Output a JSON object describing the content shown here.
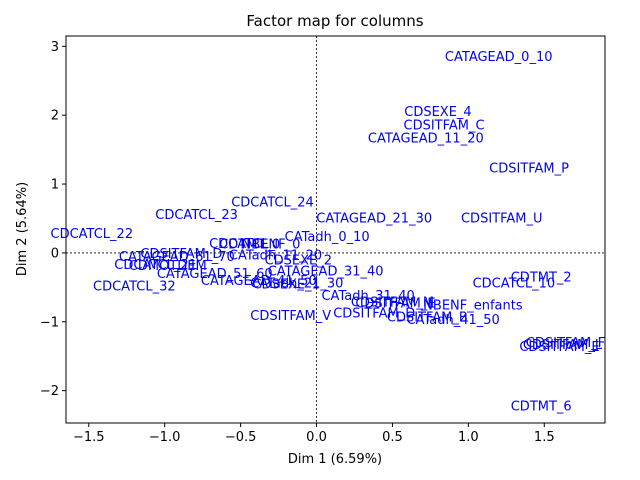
{
  "chart_data": {
    "type": "scatter",
    "title": "Factor map for columns",
    "xlabel": "Dim 1 (6.59%)",
    "ylabel": "Dim 2 (5.64%)",
    "xlim": [
      -1.65,
      1.9
    ],
    "ylim": [
      -2.47,
      3.15
    ],
    "x_ticks": [
      -1.5,
      -1.0,
      -0.5,
      0.0,
      0.5,
      1.0,
      1.5
    ],
    "x_tick_labels": [
      "−1.5",
      "−1.0",
      "−0.5",
      "0.0",
      "0.5",
      "1.0",
      "1.5"
    ],
    "y_ticks": [
      -2,
      -1,
      0,
      1,
      2,
      3
    ],
    "y_tick_labels": [
      "−2",
      "−1",
      "0",
      "1",
      "2",
      "3"
    ],
    "grid": false,
    "reference_lines": {
      "x": 0,
      "y": 0,
      "style": "dotted"
    },
    "label_color": "#0000ff",
    "points": [
      {
        "label": "CATAGEAD_0_10",
        "x": 1.2,
        "y": 2.85
      },
      {
        "label": "CDSEXE_4",
        "x": 0.8,
        "y": 2.05
      },
      {
        "label": "CDSITFAM_C",
        "x": 0.84,
        "y": 1.86
      },
      {
        "label": "CATAGEAD_11_20",
        "x": 0.72,
        "y": 1.67
      },
      {
        "label": "CDSITFAM_P",
        "x": 1.4,
        "y": 1.23
      },
      {
        "label": "CDCATCL_24",
        "x": -0.29,
        "y": 0.74
      },
      {
        "label": "CDCATCL_23",
        "x": -0.79,
        "y": 0.56
      },
      {
        "label": "CATAGEAD_21_30",
        "x": 0.38,
        "y": 0.51
      },
      {
        "label": "CDSITFAM_U",
        "x": 1.22,
        "y": 0.51
      },
      {
        "label": "CDCATCL_22",
        "x": -1.48,
        "y": 0.28
      },
      {
        "label": "CATadh_0_10",
        "x": 0.07,
        "y": 0.24
      },
      {
        "label": "CDCATCL_",
        "x": -0.49,
        "y": 0.14
      },
      {
        "label": "CDTMT_0",
        "x": -0.44,
        "y": 0.13
      },
      {
        "label": "NBENF_0",
        "x": -0.3,
        "y": 0.13
      },
      {
        "label": "CDSITFAM_D",
        "x": -0.89,
        "y": -0.01
      },
      {
        "label": "CATadh_11_20",
        "x": -0.27,
        "y": -0.03
      },
      {
        "label": "CATAGEAD_61_70",
        "x": -0.92,
        "y": -0.05
      },
      {
        "label": "CDSEXE_2",
        "x": -0.12,
        "y": -0.1
      },
      {
        "label": "CDCATCL_21",
        "x": -1.06,
        "y": -0.17
      },
      {
        "label": "CDMOTDEM",
        "x": -0.98,
        "y": -0.18
      },
      {
        "label": "CATAGEAD_31_40",
        "x": 0.06,
        "y": -0.26
      },
      {
        "label": "CATAGEAD_51_60",
        "x": -0.67,
        "y": -0.3
      },
      {
        "label": "CATAGEAD_41_50",
        "x": -0.38,
        "y": -0.4
      },
      {
        "label": "CATadh_21_30",
        "x": -0.13,
        "y": -0.44
      },
      {
        "label": "CDSEXE_1",
        "x": -0.2,
        "y": -0.45
      },
      {
        "label": "CDTMT_2",
        "x": 1.48,
        "y": -0.35
      },
      {
        "label": "CDCATCL_10",
        "x": 1.3,
        "y": -0.44
      },
      {
        "label": "CDCATCL_32",
        "x": -1.2,
        "y": -0.48
      },
      {
        "label": "CATadh_31_40",
        "x": 0.34,
        "y": -0.62
      },
      {
        "label": "CDSITFAM_M",
        "x": 0.5,
        "y": -0.71
      },
      {
        "label": "CDSITFAM_E",
        "x": 0.52,
        "y": -0.73
      },
      {
        "label": "NBENF_enfants",
        "x": 1.03,
        "y": -0.76
      },
      {
        "label": "CDSITFAM_V",
        "x": -0.17,
        "y": -0.91
      },
      {
        "label": "CDSITFAM_D",
        "x": 0.38,
        "y": -0.87
      },
      {
        "label": "CDSITFAM_B",
        "x": 0.73,
        "y": -0.93
      },
      {
        "label": "CATadh_41_50",
        "x": 0.9,
        "y": -0.97
      },
      {
        "label": "CDSITFAM_F",
        "x": 1.64,
        "y": -1.3
      },
      {
        "label": "CDSITFAM_L",
        "x": 1.62,
        "y": -1.33
      },
      {
        "label": "CDSITFAM_E",
        "x": 1.6,
        "y": -1.36
      },
      {
        "label": "CDTMT_6",
        "x": 1.48,
        "y": -2.22
      }
    ]
  }
}
